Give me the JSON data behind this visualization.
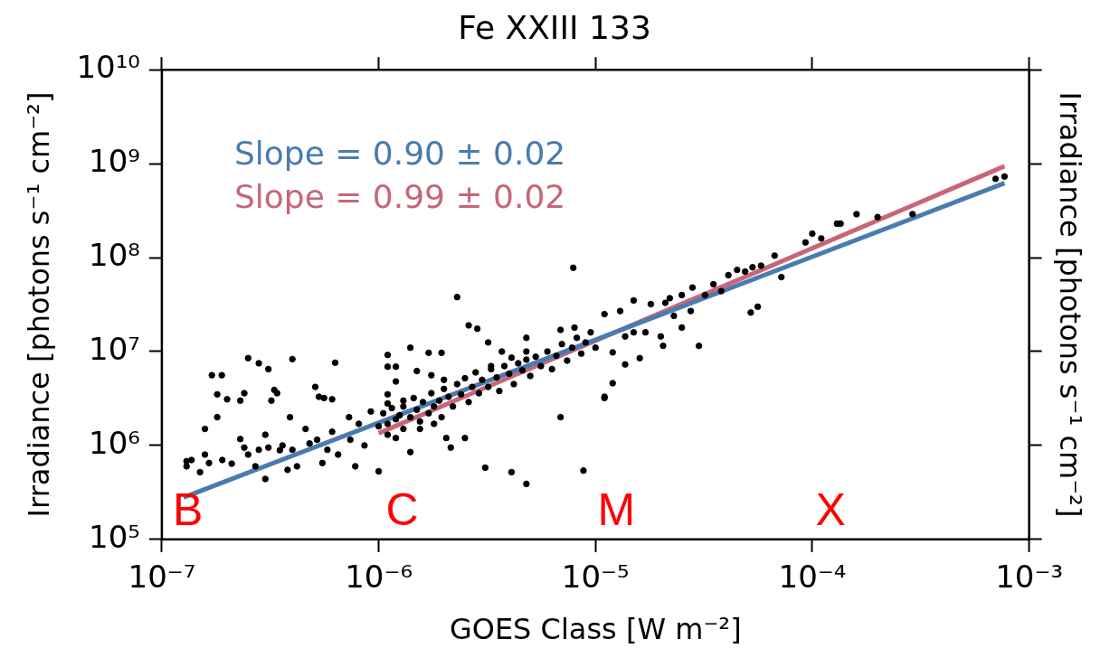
{
  "chart_data": {
    "type": "scatter",
    "title": "Fe XXIII 133",
    "xlabel": "GOES Class [W m⁻²]",
    "ylabel": "Irradiance [photons s⁻¹ cm⁻²]",
    "y2label": "Irradiance [photons s⁻¹ cm⁻²]",
    "log": "xy",
    "grid": false,
    "legend": "top left",
    "xlim": [
      1e-07,
      0.001
    ],
    "xticks": [
      {
        "value": 1e-07,
        "label": "10⁻⁷"
      },
      {
        "value": 1e-06,
        "label": "10⁻⁶"
      },
      {
        "value": 1e-05,
        "label": "10⁻⁵"
      },
      {
        "value": 0.0001,
        "label": "10⁻⁴"
      },
      {
        "value": 0.001,
        "label": "10⁻³"
      }
    ],
    "ylim": [
      100000.0,
      10000000000.0
    ],
    "yticks": [
      {
        "value": 100000.0,
        "label": "10⁵"
      },
      {
        "value": 1000000.0,
        "label": "10⁶"
      },
      {
        "value": 10000000.0,
        "label": "10⁷"
      },
      {
        "value": 100000000.0,
        "label": "10⁸"
      },
      {
        "value": 1000000000.0,
        "label": "10⁹"
      },
      {
        "value": 10000000000.0,
        "label": "10¹⁰"
      }
    ],
    "annotations": [
      "B",
      "C",
      "M",
      "X"
    ],
    "series": [
      {
        "type": "scatter",
        "marker": "circle",
        "color": "#000000",
        "x": [
          1.7e-07,
          1.89e-07,
          2.5e-07,
          2.8e-07,
          3.1e-07,
          4e-07,
          6.3e-07,
          1.8e-07,
          2e-07,
          2.3e-07,
          2.4e-07,
          1.8e-07,
          1.58e-07,
          3.3e-07,
          3.4e-07,
          3.2e-07,
          3.9e-07,
          5.1e-07,
          5.3e-07,
          5.6e-07,
          6.1e-07,
          3e-07,
          1.3e-07,
          1.3e-07,
          1.37e-07,
          1.5e-07,
          1.58e-07,
          1.65e-07,
          1.9e-07,
          2.1e-07,
          2.3e-07,
          2.4e-07,
          2.5e-07,
          2.7e-07,
          2.8e-07,
          3e-07,
          3.1e-07,
          3.5e-07,
          3.6e-07,
          3.8e-07,
          4e-07,
          4.2e-07,
          4.6e-07,
          4.8e-07,
          5.2e-07,
          5.5e-07,
          5.8e-07,
          6.1e-07,
          6.5e-07,
          7.3e-07,
          7.4e-07,
          7.8e-07,
          8.1e-07,
          8.6e-07,
          9.2e-07,
          1e-06,
          1.1e-06,
          1.1e-06,
          1.2e-06,
          1.1e-06,
          1.2e-06,
          1.1e-06,
          1.1e-06,
          1.2e-06,
          1.3e-06,
          1.4e-06,
          1.4e-06,
          1.5e-06,
          1.55e-06,
          1.7e-06,
          1.75e-06,
          1.8e-06,
          1.95e-06,
          2e-06,
          2.05e-06,
          2.15e-06,
          2.3e-06,
          2.6e-06,
          2.85e-06,
          2.5e-06,
          3.1e-06,
          3.2e-06,
          3.3e-06,
          3.7e-06,
          4.1e-06,
          4.1e-06,
          4.8e-06,
          4.8e-06,
          4.8e-06,
          6.9e-06,
          7.9e-06,
          8e-06,
          6.9e-06,
          8.8e-06,
          1.1e-05,
          1.1e-05,
          1e-06,
          1.05e-06,
          1.1e-06,
          1.15e-06,
          1.2e-06,
          1.25e-06,
          1.3e-06,
          1.3e-06,
          1.4e-06,
          1.45e-06,
          1.5e-06,
          1.55e-06,
          1.6e-06,
          1.7e-06,
          1.75e-06,
          1.8e-06,
          1.9e-06,
          1.95e-06,
          2e-06,
          2.1e-06,
          2.2e-06,
          2.3e-06,
          2.4e-06,
          2.5e-06,
          2.6e-06,
          2.7e-06,
          2.8e-06,
          2.9e-06,
          3e-06,
          3.2e-06,
          3.3e-06,
          3.5e-06,
          3.6e-06,
          3.8e-06,
          4e-06,
          4.2e-06,
          4.4e-06,
          4.6e-06,
          4.8e-06,
          5e-06,
          5.3e-06,
          5.6e-06,
          6e-06,
          6.3e-06,
          6.6e-06,
          7e-06,
          7.4e-06,
          7.8e-06,
          8.2e-06,
          8.6e-06,
          9e-06,
          9.5e-06,
          1e-05,
          1.1e-05,
          1.2e-05,
          1.2e-05,
          1.3e-05,
          1.37e-05,
          1.37e-05,
          1.5e-05,
          1.5e-05,
          1.6e-05,
          1.7e-05,
          1.8e-05,
          2e-05,
          2.05e-05,
          2.1e-05,
          2.2e-05,
          2.3e-05,
          2.5e-05,
          2.5e-05,
          2.75e-05,
          2.8e-05,
          3e-05,
          3.2e-05,
          3.5e-05,
          3.8e-05,
          4.1e-05,
          4.5e-05,
          4.9e-05,
          5.2e-05,
          5.3e-05,
          5.6e-05,
          5.8e-05,
          6.7e-05,
          7.2e-05,
          9.3e-05,
          0.0001,
          0.00011,
          0.00013,
          0.000135,
          0.00016,
          0.0002,
          0.00029,
          0.0007,
          0.00077
        ],
        "values": [
          5600000.0,
          5600000.0,
          8500000.0,
          7500000.0,
          6500000.0,
          8300000.0,
          7600000.0,
          3500000.0,
          3100000.0,
          3000000.0,
          3600000.0,
          2000000.0,
          1500000.0,
          3900000.0,
          3600000.0,
          3000000.0,
          2000000.0,
          4200000.0,
          3300000.0,
          3200000.0,
          3100000.0,
          440000.0,
          680000.0,
          600000.0,
          700000.0,
          520000.0,
          800000.0,
          650000.0,
          700000.0,
          640000.0,
          1170000.0,
          950000.0,
          800000.0,
          600000.0,
          900000.0,
          1300000.0,
          950000.0,
          890000.0,
          1000000.0,
          550000.0,
          900000.0,
          600000.0,
          1500000.0,
          1050000.0,
          1150000.0,
          650000.0,
          900000.0,
          1400000.0,
          800000.0,
          2000000.0,
          1150000.0,
          600000.0,
          1700000.0,
          1000000.0,
          2300000.0,
          530000.0,
          9200000.0,
          6900000.0,
          6900000.0,
          3500000.0,
          4800000.0,
          2800000.0,
          1300000.0,
          1200000.0,
          3000000.0,
          11000000.0,
          850000.0,
          6200000.0,
          1500000.0,
          9700000.0,
          5600000.0,
          1700000.0,
          9700000.0,
          5000000.0,
          1200000.0,
          950000.0,
          38000000.0,
          19000000.0,
          17500000.0,
          1200000.0,
          580000.0,
          12500000.0,
          7000000.0,
          10000000.0,
          520000.0,
          8600000.0,
          14000000.0,
          390000.0,
          10000000.0,
          2000000.0,
          78000000.0,
          18000000.0,
          17000000.0,
          540000.0,
          3300000.0,
          25000000.0,
          1600000.0,
          2200000.0,
          1700000.0,
          2500000.0,
          1900000.0,
          2100000.0,
          1500000.0,
          2600000.0,
          2000000.0,
          3200000.0,
          2400000.0,
          1800000.0,
          2900000.0,
          2200000.0,
          3600000.0,
          2600000.0,
          3000000.0,
          2000000.0,
          4000000.0,
          3300000.0,
          2600000.0,
          4500000.0,
          3500000.0,
          5200000.0,
          2900000.0,
          4200000.0,
          6000000.0,
          3600000.0,
          5000000.0,
          4200000.0,
          6500000.0,
          5300000.0,
          3800000.0,
          7000000.0,
          5800000.0,
          4500000.0,
          7500000.0,
          6300000.0,
          8200000.0,
          5500000.0,
          8800000.0,
          7000000.0,
          10000000.0,
          6500000.0,
          9000000.0,
          12000000.0,
          8000000.0,
          11000000.0,
          14000000.0,
          9500000.0,
          12500000.0,
          16000000.0,
          11000000.0,
          3200000.0,
          4600000.0,
          9800000.0,
          27000000.0,
          7300000.0,
          14500000.0,
          35000000.0,
          16000000.0,
          8500000.0,
          16000000.0,
          32000000.0,
          14500000.0,
          11500000.0,
          33000000.0,
          37000000.0,
          24000000.0,
          18000000.0,
          40000000.0,
          27000000.0,
          48000000.0,
          11500000.0,
          40000000.0,
          52000000.0,
          44000000.0,
          65000000.0,
          74000000.0,
          71000000.0,
          26000000.0,
          79000000.0,
          30000000.0,
          82000000.0,
          105000000.0,
          62000000.0,
          145000000.0,
          180000000.0,
          160000000.0,
          230000000.0,
          230000000.0,
          290000000.0,
          270000000.0,
          290000000.0,
          690000000.0,
          730000000.0
        ]
      },
      {
        "type": "line",
        "name": "Slope = 0.90 ± 0.02",
        "color": "#4a7bb0",
        "x": [
          1.26e-07,
          0.00077
        ],
        "values": [
          280000.0,
          620000000.0
        ]
      },
      {
        "type": "line",
        "name": "Slope = 0.99 ± 0.02",
        "color": "#c86678",
        "x": [
          1e-06,
          0.00077
        ],
        "values": [
          1350000.0,
          940000000.0
        ]
      }
    ]
  }
}
